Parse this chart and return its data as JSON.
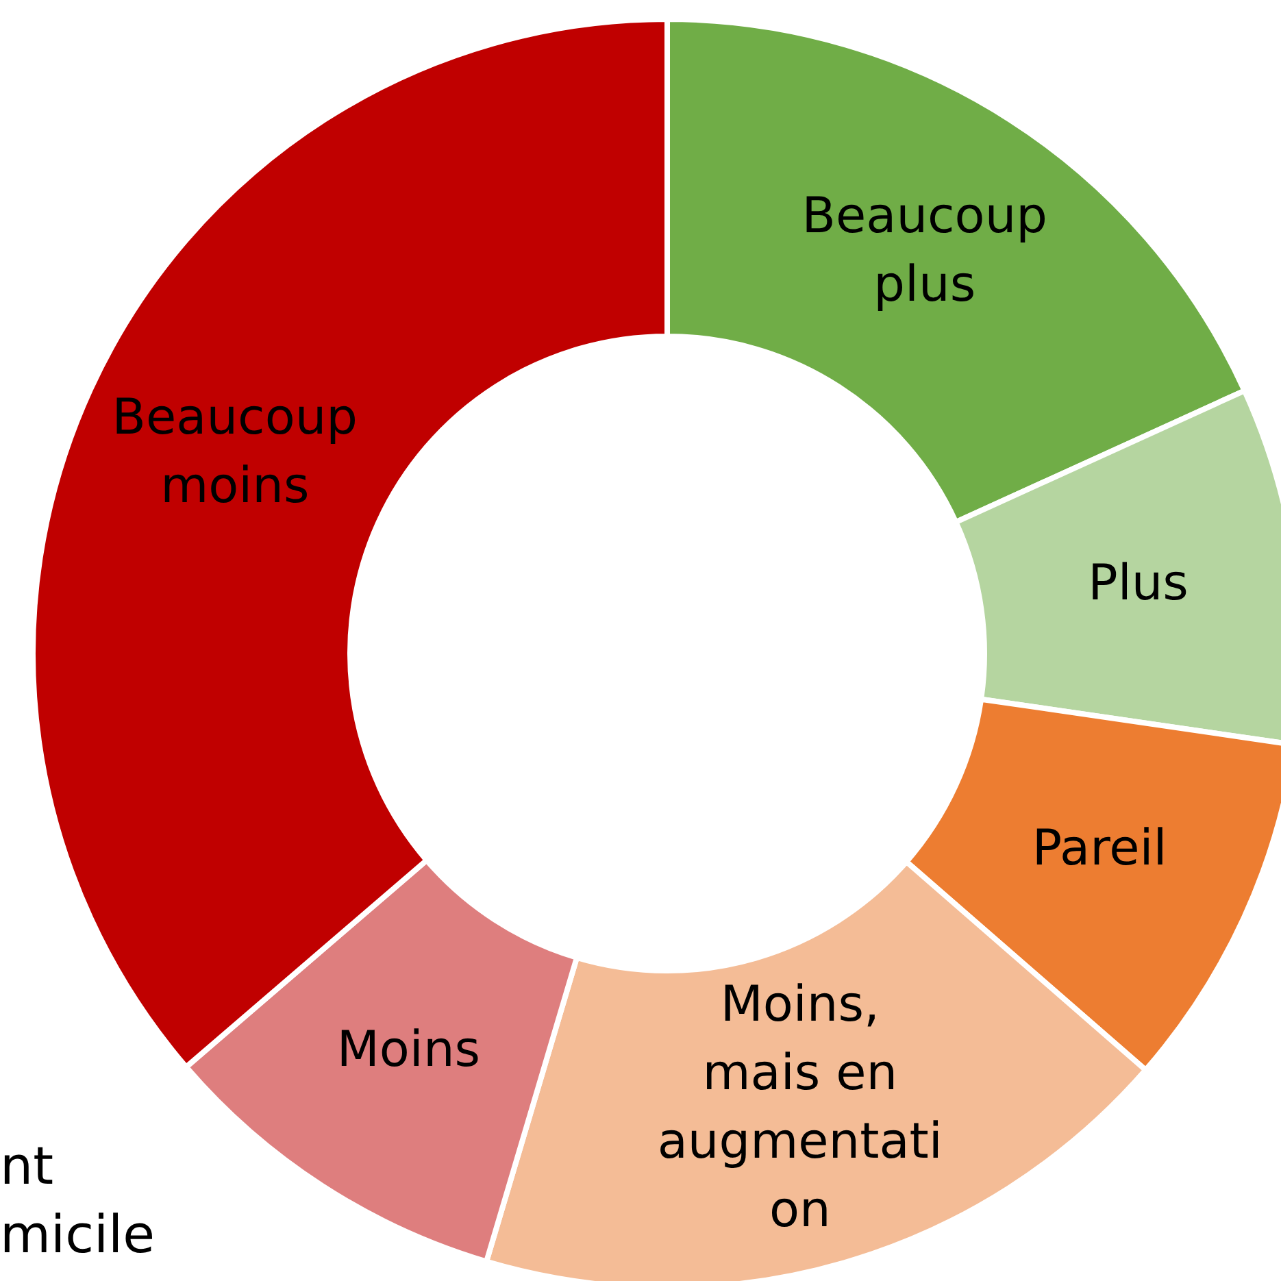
{
  "chart_data": {
    "type": "donut",
    "categories": [
      "Beaucoup plus",
      "Plus",
      "Pareil",
      "Moins, mais en augmentation",
      "Moins",
      "Beaucoup moins"
    ],
    "values": [
      18.2,
      9.1,
      9.1,
      18.2,
      9.1,
      36.3
    ],
    "colors": [
      "#70ad47",
      "#b5d5a0",
      "#ed7d31",
      "#f4bc96",
      "#de7e7e",
      "#c00000"
    ],
    "legend": false,
    "annotations": [
      "nt",
      "micile"
    ]
  }
}
